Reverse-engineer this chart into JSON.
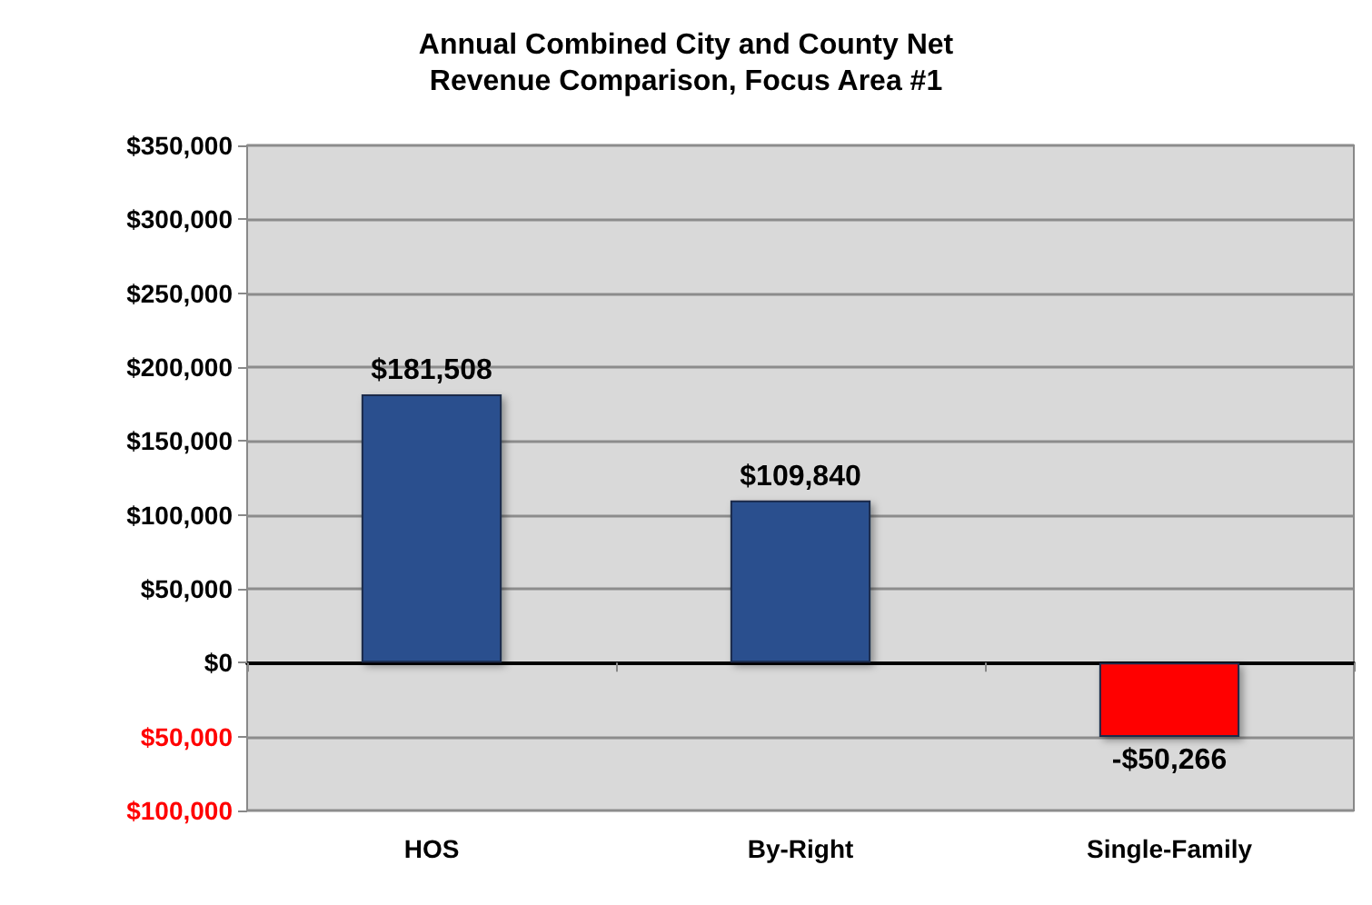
{
  "chart_data": {
    "type": "bar",
    "title": "Annual Combined City and County Net\nRevenue Comparison, Focus Area #1",
    "categories": [
      "HOS",
      "By-Right",
      "Single-Family"
    ],
    "values": [
      181508,
      109840,
      -50266
    ],
    "colors": [
      "#2b4f8e",
      "#2b4f8e",
      "#ff0000"
    ],
    "value_labels": [
      "$181,508",
      "$109,840",
      "-$50,266"
    ],
    "ylim": [
      -100000,
      350000
    ],
    "yticks": [
      {
        "value": -100000,
        "label": "$100,000"
      },
      {
        "value": -50000,
        "label": "$50,000"
      },
      {
        "value": 0,
        "label": "$0"
      },
      {
        "value": 50000,
        "label": "$50,000"
      },
      {
        "value": 100000,
        "label": "$100,000"
      },
      {
        "value": 150000,
        "label": "$150,000"
      },
      {
        "value": 200000,
        "label": "$200,000"
      },
      {
        "value": 250000,
        "label": "$250,000"
      },
      {
        "value": 300000,
        "label": "$300,000"
      },
      {
        "value": 350000,
        "label": "$350,000"
      }
    ],
    "grid": "y"
  }
}
